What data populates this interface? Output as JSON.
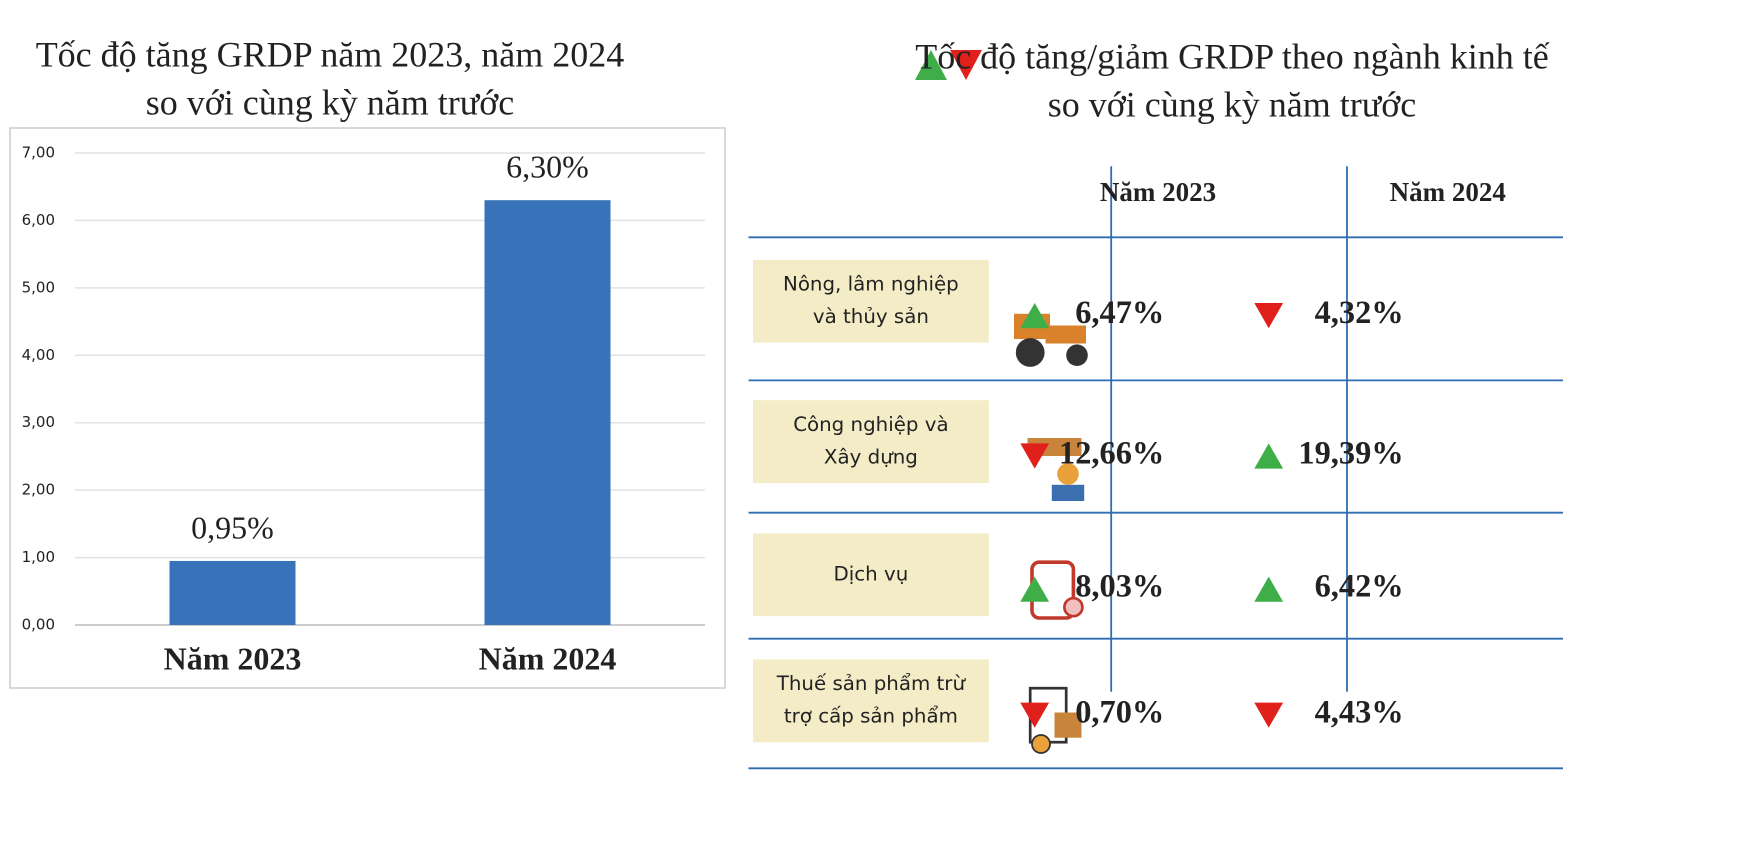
{
  "chart_data": {
    "type": "bar",
    "title": "Tốc độ tăng GRDP năm 2023, năm 2024",
    "subtitle": "so với cùng kỳ năm trước",
    "categories": [
      "Năm 2023",
      "Năm 2024"
    ],
    "values": [
      0.95,
      6.3
    ],
    "value_labels": [
      "0,95%",
      "6,30%"
    ],
    "color": "#3872b9",
    "ylim": [
      0,
      7
    ],
    "yticks": [
      {
        "value": 0,
        "label": "0,00"
      },
      {
        "value": 1,
        "label": "1,00"
      },
      {
        "value": 2,
        "label": "2,00"
      },
      {
        "value": 3,
        "label": "3,00"
      },
      {
        "value": 4,
        "label": "4,00"
      },
      {
        "value": 5,
        "label": "5,00"
      },
      {
        "value": 6,
        "label": "6,00"
      },
      {
        "value": 7,
        "label": "7,00"
      }
    ],
    "grid": true
  },
  "table": {
    "title": "Tốc độ tăng/giảm GRDP theo ngành kinh tế",
    "subtitle": "so với cùng kỳ năm trước",
    "columns": [
      "Năm 2023",
      "Năm 2024"
    ],
    "trend_colors": {
      "up": "#3fae49",
      "down": "#e0201b"
    },
    "rows": [
      {
        "label": [
          "Nông, lâm nghiệp",
          "và thủy sản"
        ],
        "cells": [
          {
            "text": "6,47%",
            "trend": "up"
          },
          {
            "text": "4,32%",
            "trend": "down"
          }
        ]
      },
      {
        "label": [
          "Công nghiệp và",
          "Xây dựng"
        ],
        "cells": [
          {
            "text": "12,66%",
            "trend": "down"
          },
          {
            "text": "19,39%",
            "trend": "up"
          }
        ]
      },
      {
        "label": [
          "Dịch vụ"
        ],
        "cells": [
          {
            "text": "8,03%",
            "trend": "up"
          },
          {
            "text": "6,42%",
            "trend": "up"
          }
        ]
      },
      {
        "label": [
          "Thuế sản phẩm trừ",
          "trợ cấp sản phẩm"
        ],
        "cells": [
          {
            "text": "0,70%",
            "trend": "down"
          },
          {
            "text": "4,43%",
            "trend": "down"
          }
        ]
      }
    ]
  }
}
